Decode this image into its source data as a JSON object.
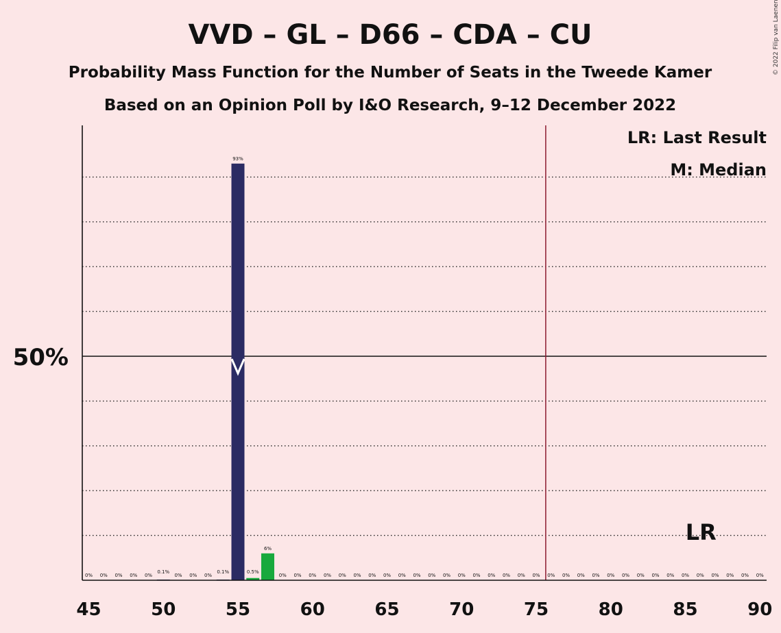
{
  "chart_data": {
    "type": "bar",
    "title": "VVD – GL – D66 – CDA – CU",
    "subtitle": "Probability Mass Function for the Number of Seats in the Tweede Kamer",
    "subtitle2": "Based on an Opinion Poll by I&O Research, 9–12 December 2022",
    "copyright": "© 2022 Filip van Laenen",
    "legend": {
      "last_result": "LR: Last Result",
      "median": "M: Median",
      "placement": "top-right"
    },
    "xlim": [
      45,
      90
    ],
    "ylim": [
      0,
      100
    ],
    "x_ticks": [
      45,
      50,
      55,
      60,
      65,
      70,
      75,
      80,
      85,
      90
    ],
    "y_labeled_tick": {
      "value": 50,
      "label": "50%"
    },
    "y_gridlines": [
      10,
      20,
      30,
      40,
      60,
      70,
      80,
      90
    ],
    "majority_seat": 76,
    "median_seat": 55,
    "last_result_seat": 86,
    "last_result_label": "LR",
    "colors": {
      "background": "#fce6e7",
      "bar": "#2b2b63",
      "majority_bar": "#18a93d",
      "majority_line": "#8b1a2f",
      "median_marker": "#ffffff"
    },
    "x": [
      45,
      46,
      47,
      48,
      49,
      50,
      51,
      52,
      53,
      54,
      55,
      56,
      57,
      58,
      59,
      60,
      61,
      62,
      63,
      64,
      65,
      66,
      67,
      68,
      69,
      70,
      71,
      72,
      73,
      74,
      75,
      76,
      77,
      78,
      79,
      80,
      81,
      82,
      83,
      84,
      85,
      86,
      87,
      88,
      89,
      90
    ],
    "values": [
      0,
      0,
      0,
      0,
      0,
      0.1,
      0,
      0,
      0,
      0.1,
      93,
      0.5,
      6,
      0,
      0,
      0,
      0,
      0,
      0,
      0,
      0,
      0,
      0,
      0,
      0,
      0,
      0,
      0,
      0,
      0,
      0,
      0,
      0,
      0,
      0,
      0,
      0,
      0,
      0,
      0,
      0,
      0,
      0,
      0,
      0,
      0
    ],
    "labels": [
      "0%",
      "0%",
      "0%",
      "0%",
      "0%",
      "0.1%",
      "0%",
      "0%",
      "0%",
      "0.1%",
      "93%",
      "0.5%",
      "6%",
      "0%",
      "0%",
      "0%",
      "0%",
      "0%",
      "0%",
      "0%",
      "0%",
      "0%",
      "0%",
      "0%",
      "0%",
      "0%",
      "0%",
      "0%",
      "0%",
      "0%",
      "0%",
      "0%",
      "0%",
      "0%",
      "0%",
      "0%",
      "0%",
      "0%",
      "0%",
      "0%",
      "0%",
      "0%",
      "0%",
      "0%",
      "0%",
      "0%"
    ]
  }
}
